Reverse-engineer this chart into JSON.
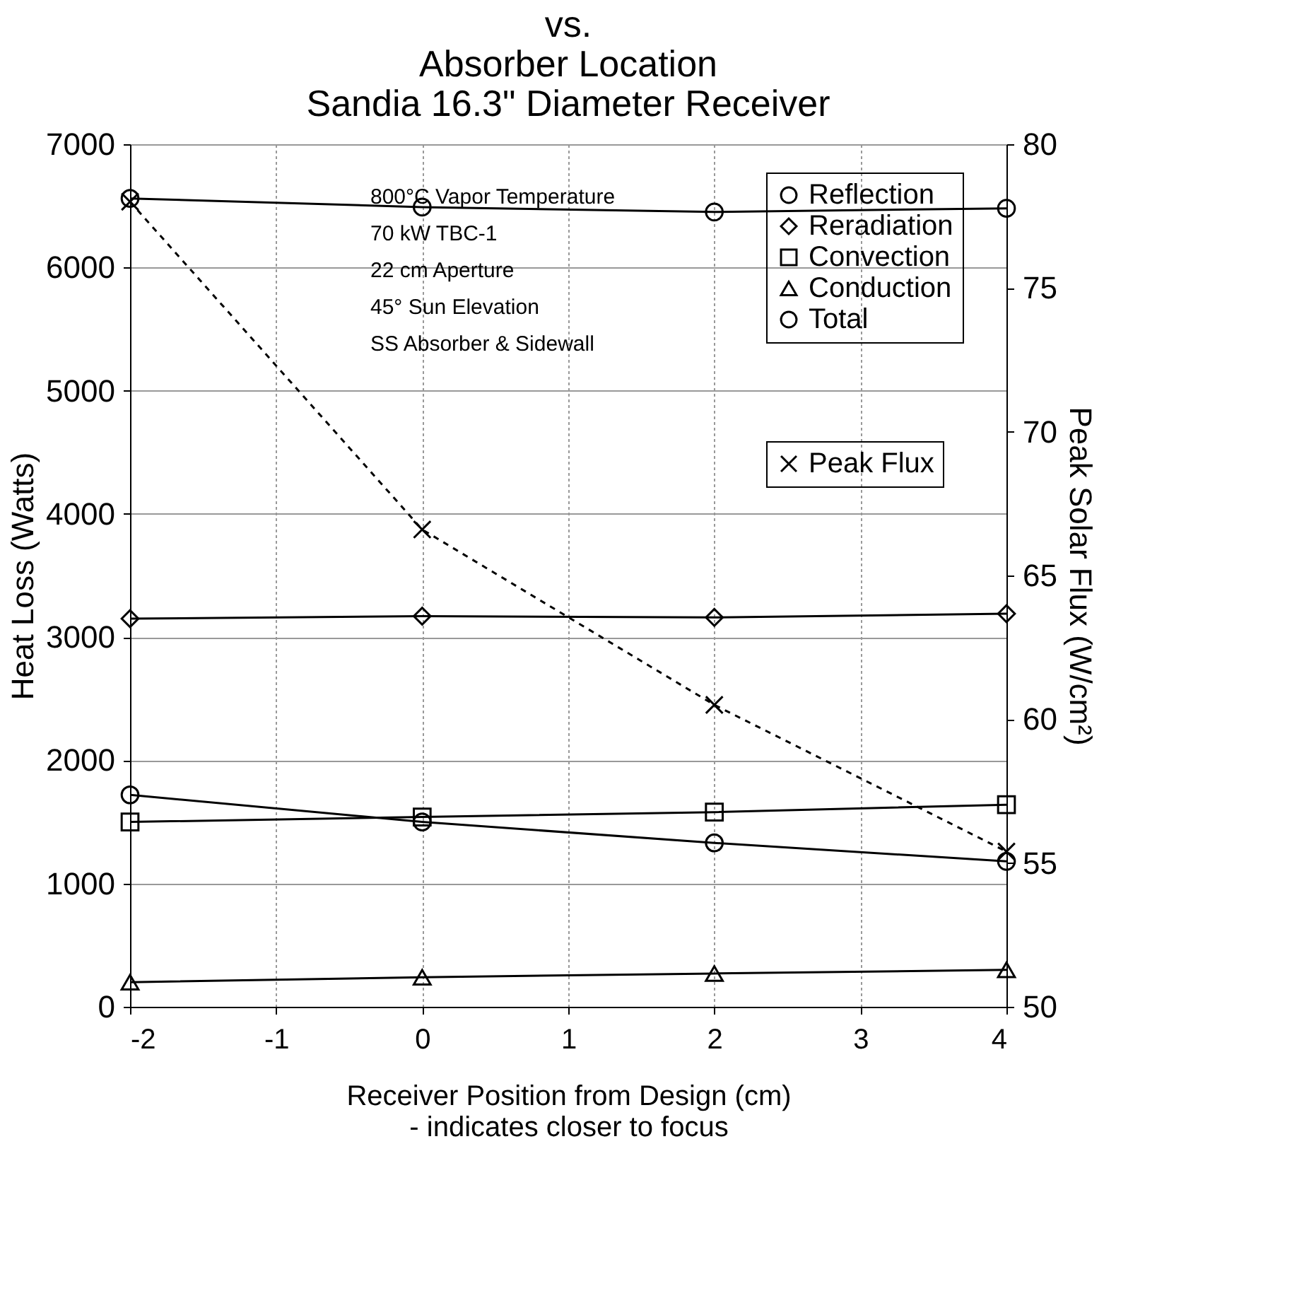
{
  "chart_data": {
    "type": "line",
    "title": [
      "vs.",
      "Absorber Location",
      "Sandia 16.3\" Diameter Receiver"
    ],
    "xlabel": [
      "Receiver Position from Design (cm)",
      "- indicates closer to focus"
    ],
    "ylabel": "Heat Loss (Watts)",
    "y2label": "Peak Solar Flux (W/cm²)",
    "x": [
      -2,
      0,
      2,
      4
    ],
    "series": [
      {
        "name": "Reflection",
        "color": "#000000",
        "marker": "circle",
        "line_style": "solid",
        "values": [
          1720,
          1500,
          1330,
          1180
        ]
      },
      {
        "name": "Reradiation",
        "color": "#000000",
        "marker": "diamond",
        "line_style": "solid",
        "values": [
          3150,
          3170,
          3160,
          3190
        ]
      },
      {
        "name": "Convection",
        "color": "#000000",
        "marker": "square",
        "line_style": "solid",
        "values": [
          1500,
          1540,
          1580,
          1640
        ]
      },
      {
        "name": "Conduction",
        "color": "#000000",
        "marker": "triangle",
        "line_style": "solid",
        "values": [
          200,
          240,
          270,
          300
        ]
      },
      {
        "name": "Total",
        "color": "#000000",
        "marker": "circle",
        "line_style": "solid",
        "values": [
          6560,
          6490,
          6450,
          6480
        ]
      },
      {
        "name": "Peak Flux",
        "color": "#000000",
        "marker": "cross",
        "line_style": "dashed",
        "axis": "y2",
        "values": [
          78.0,
          66.6,
          60.5,
          55.4
        ]
      }
    ],
    "xlim": [
      -2,
      4
    ],
    "xticks": [
      -2,
      -1,
      0,
      1,
      2,
      3,
      4
    ],
    "ylim": [
      0,
      7000
    ],
    "yticks": [
      0,
      1000,
      2000,
      3000,
      4000,
      5000,
      6000,
      7000
    ],
    "y2lim": [
      50,
      80
    ],
    "y2ticks": [
      50,
      55,
      60,
      65,
      70,
      75,
      80
    ],
    "grid": true,
    "legend": "top right",
    "annotations": [
      "800°C Vapor Temperature",
      "70 kW TBC-1",
      "22 cm Aperture",
      "45° Sun Elevation",
      "SS Absorber & Sidewall"
    ]
  }
}
